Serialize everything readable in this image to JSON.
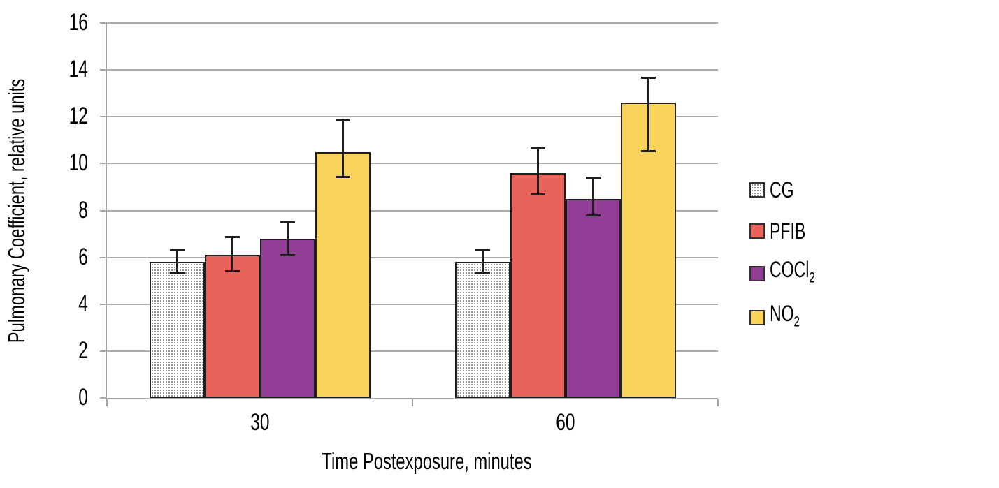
{
  "chart_data": {
    "type": "bar",
    "title": "",
    "xlabel": "Time Postexposure, minutes",
    "ylabel": "Pulmonary Coefficient, relative units",
    "categories": [
      "30",
      "60"
    ],
    "series": [
      {
        "name": "CG",
        "label": "CG",
        "label_sub": "",
        "fill": "pattern-dots",
        "values": [
          5.8,
          5.8
        ],
        "err_up": [
          0.55,
          0.55
        ],
        "err_down": [
          0.5,
          0.5
        ]
      },
      {
        "name": "PFIB",
        "label": "PFIB",
        "label_sub": "",
        "fill": "#E8645B",
        "values": [
          6.1,
          9.6
        ],
        "err_up": [
          0.8,
          1.1
        ],
        "err_down": [
          0.75,
          0.95
        ]
      },
      {
        "name": "COCl2",
        "label": "COCl",
        "label_sub": "2",
        "fill": "#913D96",
        "values": [
          6.8,
          8.5
        ],
        "err_up": [
          0.75,
          0.95
        ],
        "err_down": [
          0.75,
          0.75
        ]
      },
      {
        "name": "NO2",
        "label": "NO",
        "label_sub": "2",
        "fill": "#FAD35A",
        "values": [
          10.5,
          12.6
        ],
        "err_up": [
          1.4,
          1.1
        ],
        "err_down": [
          1.1,
          2.1
        ]
      }
    ],
    "ylim": [
      0,
      16
    ],
    "yticks": [
      0,
      2,
      4,
      6,
      8,
      10,
      12,
      14,
      16
    ],
    "grid": true,
    "legend_position": "right",
    "error_bars": true
  },
  "colors": {
    "background": "#FFFFFF",
    "gridline": "#ABABAB",
    "axis_line": "#A3A3A3",
    "bar_outline": "#1F1F1F",
    "error_bar": "#1F1F1F",
    "cg_pattern_dot": "#8F8F8F",
    "text": "#000000"
  }
}
